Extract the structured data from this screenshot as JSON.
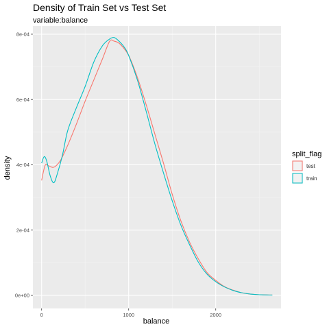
{
  "chart_data": {
    "type": "line",
    "title": "Density of Train Set vs Test Set",
    "subtitle": "variable:balance",
    "xlabel": "balance",
    "ylabel": "density",
    "xlim": [
      -100,
      2750
    ],
    "ylim": [
      -4e-05,
      0.000825
    ],
    "x_ticks": [
      0,
      1000,
      2000
    ],
    "x_tick_labels": [
      "0",
      "1000",
      "2000"
    ],
    "y_ticks": [
      0,
      0.0002,
      0.0004,
      0.0006,
      0.0008
    ],
    "y_tick_labels": [
      "0e+00",
      "2e-04",
      "4e-04",
      "6e-04",
      "8e-04"
    ],
    "grid": true,
    "legend": {
      "title": "split_flag",
      "position": "right"
    },
    "series": [
      {
        "name": "test",
        "color": "#F8766D",
        "x": [
          0,
          40,
          80,
          130,
          170,
          220,
          300,
          400,
          500,
          600,
          700,
          780,
          830,
          900,
          1000,
          1100,
          1200,
          1300,
          1400,
          1500,
          1600,
          1700,
          1800,
          1900,
          2000,
          2100,
          2200,
          2300,
          2400,
          2500,
          2650
        ],
        "y": [
          0.000352,
          0.000398,
          0.000397,
          0.000392,
          0.000398,
          0.000415,
          0.00046,
          0.000525,
          0.000595,
          0.00066,
          0.000725,
          0.000778,
          0.000779,
          0.00077,
          0.000735,
          0.000668,
          0.000585,
          0.000495,
          0.000405,
          0.00031,
          0.000228,
          0.000163,
          0.000112,
          7e-05,
          4.6e-05,
          2.7e-05,
          1.6e-05,
          8e-06,
          4e-06,
          2e-06,
          1e-06
        ]
      },
      {
        "name": "train",
        "color": "#00BFC4",
        "x": [
          0,
          30,
          60,
          100,
          140,
          180,
          240,
          300,
          400,
          500,
          600,
          700,
          780,
          830,
          880,
          950,
          1000,
          1100,
          1200,
          1300,
          1400,
          1500,
          1600,
          1700,
          1800,
          1900,
          2000,
          2100,
          2200,
          2300,
          2400,
          2500,
          2650
        ],
        "y": [
          0.000405,
          0.000425,
          0.00041,
          0.000365,
          0.000345,
          0.000372,
          0.00043,
          0.000505,
          0.000575,
          0.00064,
          0.000715,
          0.000765,
          0.000785,
          0.00079,
          0.000781,
          0.00076,
          0.000735,
          0.00066,
          0.000565,
          0.000465,
          0.000375,
          0.00029,
          0.000215,
          0.000155,
          0.000102,
          6.5e-05,
          4.2e-05,
          2.6e-05,
          1.5e-05,
          8e-06,
          4e-06,
          2e-06,
          1e-06
        ]
      }
    ]
  }
}
